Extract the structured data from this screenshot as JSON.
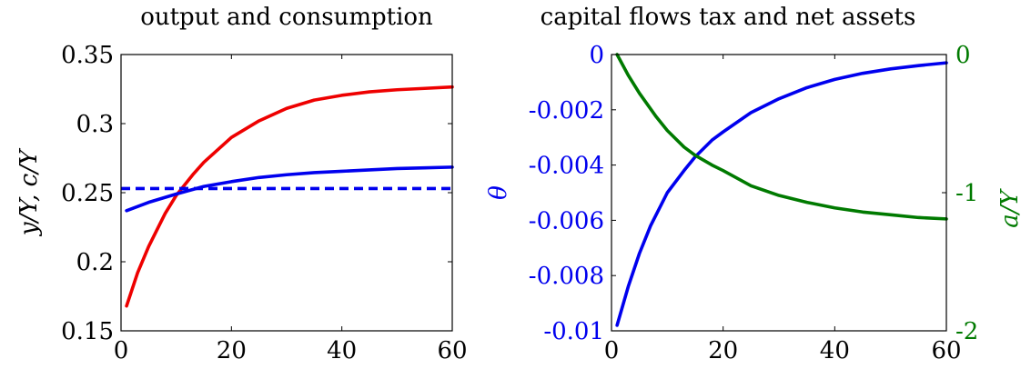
{
  "chart_data": [
    {
      "type": "line",
      "title": "output and consumption",
      "xlabel": "",
      "ylabel": "y/Y, c/Y",
      "xlim": [
        0,
        60
      ],
      "ylim": [
        0.15,
        0.35
      ],
      "xticks": [
        0,
        20,
        40,
        60
      ],
      "xtick_labels": [
        "0",
        "20",
        "40",
        "60"
      ],
      "yticks": [
        0.15,
        0.2,
        0.25,
        0.3,
        0.35
      ],
      "ytick_labels": [
        "0.15",
        "0.2",
        "0.25",
        "0.3",
        "0.35"
      ],
      "grid": false,
      "legend": "none",
      "series": [
        {
          "color": "#ee0000",
          "style": "solid",
          "x": [
            1,
            3,
            5,
            8,
            10,
            13,
            15,
            20,
            25,
            30,
            35,
            40,
            45,
            50,
            55,
            60
          ],
          "y": [
            0.168,
            0.192,
            0.211,
            0.235,
            0.248,
            0.263,
            0.272,
            0.29,
            0.302,
            0.311,
            0.317,
            0.3205,
            0.323,
            0.3245,
            0.3255,
            0.3265
          ]
        },
        {
          "color": "#0000ee",
          "style": "solid",
          "x": [
            1,
            5,
            10,
            15,
            20,
            25,
            30,
            35,
            40,
            45,
            50,
            55,
            60
          ],
          "y": [
            0.237,
            0.243,
            0.249,
            0.2545,
            0.258,
            0.261,
            0.263,
            0.2645,
            0.2655,
            0.2665,
            0.2675,
            0.268,
            0.2685
          ]
        },
        {
          "color": "#0000ee",
          "style": "dashed",
          "x": [
            0,
            60
          ],
          "y": [
            0.253,
            0.253
          ]
        }
      ]
    },
    {
      "type": "line",
      "title": "capital flows tax and net assets",
      "xlabel": "",
      "ylabel": "θ",
      "ylabel_color": "#0000ee",
      "y2label": "a/Y",
      "y2label_color": "#007a00",
      "xlim": [
        0,
        60
      ],
      "ylim": [
        -0.01,
        0
      ],
      "y2lim": [
        -2,
        0
      ],
      "xticks": [
        0,
        20,
        40,
        60
      ],
      "xtick_labels": [
        "0",
        "20",
        "40",
        "60"
      ],
      "yticks": [
        -0.01,
        -0.008,
        -0.006,
        -0.004,
        -0.002,
        0
      ],
      "ytick_labels": [
        "-0.01",
        "-0.008",
        "-0.006",
        "-0.004",
        "-0.002",
        "0"
      ],
      "y2ticks": [
        -2,
        -1,
        0
      ],
      "y2tick_labels": [
        "-2",
        "-1",
        "0"
      ],
      "grid": false,
      "legend": "none",
      "series": [
        {
          "color": "#0000ee",
          "style": "solid",
          "axis": "left",
          "x": [
            1,
            3,
            5,
            7,
            10,
            13,
            15,
            18,
            20,
            25,
            30,
            35,
            40,
            45,
            50,
            55,
            60
          ],
          "y": [
            -0.0098,
            -0.0084,
            -0.0072,
            -0.0062,
            -0.005,
            -0.0042,
            -0.0037,
            -0.0031,
            -0.0028,
            -0.0021,
            -0.0016,
            -0.0012,
            -0.0009,
            -0.00068,
            -0.00052,
            -0.0004,
            -0.0003
          ]
        },
        {
          "color": "#007a00",
          "style": "solid",
          "axis": "right",
          "x": [
            1,
            3,
            5,
            8,
            10,
            13,
            15,
            18,
            20,
            25,
            30,
            35,
            40,
            45,
            50,
            55,
            60
          ],
          "y": [
            0.0,
            -0.15,
            -0.28,
            -0.45,
            -0.55,
            -0.67,
            -0.73,
            -0.8,
            -0.84,
            -0.95,
            -1.02,
            -1.07,
            -1.11,
            -1.14,
            -1.16,
            -1.18,
            -1.19
          ]
        }
      ]
    }
  ]
}
